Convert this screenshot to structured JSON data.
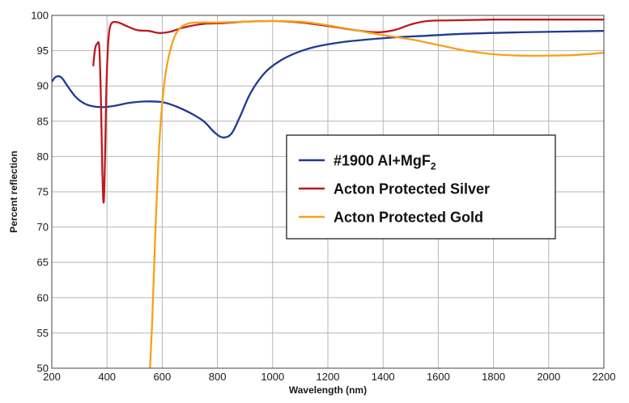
{
  "chart_data": {
    "type": "line",
    "title": "",
    "xlabel": "Wavelength (nm)",
    "ylabel": "Percent reflection",
    "xlim": [
      200,
      2200
    ],
    "ylim": [
      50,
      100
    ],
    "xticks": [
      200,
      400,
      600,
      800,
      1000,
      1200,
      1400,
      1600,
      1800,
      2000,
      2200
    ],
    "yticks": [
      50,
      55,
      60,
      65,
      70,
      75,
      80,
      85,
      90,
      95,
      100
    ],
    "grid": true,
    "legend_position": "center-right",
    "series": [
      {
        "name": "#1900 Al+MgF",
        "name_subscript": "2",
        "color": "#1f3a93",
        "points": [
          [
            200,
            90.6
          ],
          [
            215,
            91.3
          ],
          [
            235,
            91.2
          ],
          [
            260,
            89.8
          ],
          [
            290,
            88.3
          ],
          [
            330,
            87.3
          ],
          [
            380,
            87.0
          ],
          [
            430,
            87.2
          ],
          [
            480,
            87.6
          ],
          [
            540,
            87.8
          ],
          [
            600,
            87.7
          ],
          [
            650,
            87.1
          ],
          [
            700,
            86.2
          ],
          [
            750,
            85.0
          ],
          [
            790,
            83.4
          ],
          [
            820,
            82.7
          ],
          [
            850,
            83.2
          ],
          [
            880,
            85.5
          ],
          [
            920,
            89.0
          ],
          [
            970,
            91.8
          ],
          [
            1020,
            93.4
          ],
          [
            1080,
            94.6
          ],
          [
            1150,
            95.5
          ],
          [
            1250,
            96.2
          ],
          [
            1350,
            96.6
          ],
          [
            1450,
            96.9
          ],
          [
            1550,
            97.1
          ],
          [
            1700,
            97.4
          ],
          [
            1900,
            97.6
          ],
          [
            2200,
            97.8
          ]
        ]
      },
      {
        "name": "Acton Protected Silver",
        "color": "#c0171f",
        "points": [
          [
            350,
            92.8
          ],
          [
            357,
            95.3
          ],
          [
            365,
            96.0
          ],
          [
            372,
            95.4
          ],
          [
            378,
            88.0
          ],
          [
            383,
            78.0
          ],
          [
            388,
            73.5
          ],
          [
            393,
            80.0
          ],
          [
            398,
            90.0
          ],
          [
            405,
            96.5
          ],
          [
            415,
            98.8
          ],
          [
            440,
            99.0
          ],
          [
            470,
            98.5
          ],
          [
            510,
            97.9
          ],
          [
            550,
            97.8
          ],
          [
            590,
            97.5
          ],
          [
            630,
            97.7
          ],
          [
            680,
            98.3
          ],
          [
            750,
            98.8
          ],
          [
            820,
            98.9
          ],
          [
            900,
            99.1
          ],
          [
            1000,
            99.2
          ],
          [
            1100,
            99.0
          ],
          [
            1200,
            98.5
          ],
          [
            1300,
            97.9
          ],
          [
            1380,
            97.6
          ],
          [
            1440,
            97.9
          ],
          [
            1500,
            98.7
          ],
          [
            1560,
            99.2
          ],
          [
            1650,
            99.3
          ],
          [
            1800,
            99.4
          ],
          [
            2000,
            99.4
          ],
          [
            2200,
            99.4
          ]
        ]
      },
      {
        "name": "Acton Protected Gold",
        "color": "#f7a11a",
        "points": [
          [
            555,
            49.5
          ],
          [
            563,
            56.0
          ],
          [
            572,
            66.0
          ],
          [
            582,
            76.0
          ],
          [
            592,
            83.5
          ],
          [
            605,
            89.5
          ],
          [
            620,
            93.5
          ],
          [
            640,
            96.5
          ],
          [
            660,
            98.0
          ],
          [
            690,
            98.8
          ],
          [
            730,
            99.0
          ],
          [
            800,
            99.0
          ],
          [
            900,
            99.1
          ],
          [
            1000,
            99.2
          ],
          [
            1100,
            99.1
          ],
          [
            1200,
            98.6
          ],
          [
            1300,
            97.9
          ],
          [
            1400,
            97.2
          ],
          [
            1500,
            96.6
          ],
          [
            1600,
            95.8
          ],
          [
            1700,
            95.0
          ],
          [
            1800,
            94.5
          ],
          [
            1900,
            94.3
          ],
          [
            2000,
            94.3
          ],
          [
            2100,
            94.4
          ],
          [
            2200,
            94.7
          ]
        ]
      }
    ]
  }
}
